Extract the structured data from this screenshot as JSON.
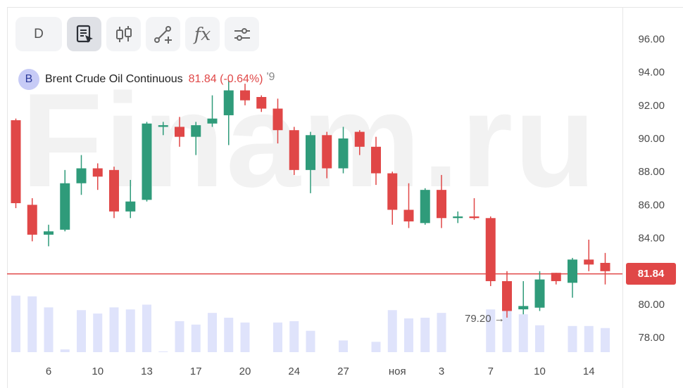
{
  "toolbar": {
    "period_label": "D",
    "tools": [
      {
        "icon": "script-cursor-icon",
        "active": true
      },
      {
        "icon": "candles-icon",
        "active": false
      },
      {
        "icon": "draw-line-icon",
        "active": false
      },
      {
        "icon": "function-icon",
        "label": "fx",
        "active": false
      },
      {
        "icon": "settings-sliders-icon",
        "active": false
      }
    ]
  },
  "legend": {
    "badge": "B",
    "name": "Brent Crude Oil Continuous",
    "value": "81.84 (-0.64%)",
    "trail": "'9"
  },
  "watermark": "Finam.ru",
  "current_price_label": "81.84",
  "min_label": "79.20 →",
  "colors": {
    "up": "#2f9b7a",
    "down": "#e04747",
    "volume": "#dfe3fb",
    "price_line": "#e04747"
  },
  "chart_data": {
    "type": "candlestick",
    "title": "Brent Crude Oil Continuous",
    "y_ticks": [
      "96.00",
      "94.00",
      "92.00",
      "90.00",
      "88.00",
      "86.00",
      "84.00",
      "82.00",
      "80.00",
      "78.00"
    ],
    "ylim": [
      77.2,
      97.8
    ],
    "x_ticks": [
      {
        "index": 2,
        "label": "6"
      },
      {
        "index": 5,
        "label": "10"
      },
      {
        "index": 8,
        "label": "13"
      },
      {
        "index": 11,
        "label": "17"
      },
      {
        "index": 14,
        "label": "20"
      },
      {
        "index": 17,
        "label": "24"
      },
      {
        "index": 20,
        "label": "27"
      },
      {
        "index": 23.3,
        "label": "ноя"
      },
      {
        "index": 26,
        "label": "3"
      },
      {
        "index": 29,
        "label": "7"
      },
      {
        "index": 32,
        "label": "10"
      },
      {
        "index": 35,
        "label": "14"
      }
    ],
    "current_price": 81.84,
    "candles": [
      {
        "i": 0,
        "o": 91.1,
        "h": 91.2,
        "l": 85.8,
        "c": 86.1
      },
      {
        "i": 1,
        "o": 86.0,
        "h": 86.4,
        "l": 83.8,
        "c": 84.2
      },
      {
        "i": 2,
        "o": 84.2,
        "h": 84.8,
        "l": 83.5,
        "c": 84.4
      },
      {
        "i": 3,
        "o": 84.5,
        "h": 88.1,
        "l": 84.4,
        "c": 87.3
      },
      {
        "i": 4,
        "o": 87.3,
        "h": 89.0,
        "l": 86.6,
        "c": 88.2
      },
      {
        "i": 5,
        "o": 88.2,
        "h": 88.5,
        "l": 86.9,
        "c": 87.7
      },
      {
        "i": 6,
        "o": 88.1,
        "h": 88.3,
        "l": 85.2,
        "c": 85.6
      },
      {
        "i": 7,
        "o": 85.6,
        "h": 87.5,
        "l": 85.2,
        "c": 86.2
      },
      {
        "i": 8,
        "o": 86.3,
        "h": 91.0,
        "l": 86.2,
        "c": 90.9
      },
      {
        "i": 9,
        "o": 90.7,
        "h": 91.0,
        "l": 90.2,
        "c": 90.8
      },
      {
        "i": 10,
        "o": 90.7,
        "h": 91.3,
        "l": 89.5,
        "c": 90.1
      },
      {
        "i": 11,
        "o": 90.1,
        "h": 91.0,
        "l": 89.0,
        "c": 90.8
      },
      {
        "i": 12,
        "o": 90.9,
        "h": 92.6,
        "l": 90.7,
        "c": 91.2
      },
      {
        "i": 13,
        "o": 91.4,
        "h": 93.5,
        "l": 89.6,
        "c": 92.9
      },
      {
        "i": 14,
        "o": 92.9,
        "h": 93.3,
        "l": 92.0,
        "c": 92.3
      },
      {
        "i": 15,
        "o": 92.5,
        "h": 92.6,
        "l": 91.6,
        "c": 91.8
      },
      {
        "i": 16,
        "o": 91.8,
        "h": 92.4,
        "l": 89.7,
        "c": 90.5
      },
      {
        "i": 17,
        "o": 90.5,
        "h": 90.7,
        "l": 87.8,
        "c": 88.1
      },
      {
        "i": 18,
        "o": 88.1,
        "h": 90.4,
        "l": 86.7,
        "c": 90.2
      },
      {
        "i": 19,
        "o": 90.2,
        "h": 90.4,
        "l": 87.6,
        "c": 88.2
      },
      {
        "i": 20,
        "o": 88.2,
        "h": 90.7,
        "l": 87.9,
        "c": 90.0
      },
      {
        "i": 21,
        "o": 90.4,
        "h": 90.5,
        "l": 89.0,
        "c": 89.5
      },
      {
        "i": 22,
        "o": 89.5,
        "h": 90.1,
        "l": 87.2,
        "c": 87.9
      },
      {
        "i": 23,
        "o": 87.9,
        "h": 88.0,
        "l": 84.8,
        "c": 85.7
      },
      {
        "i": 24,
        "o": 85.7,
        "h": 87.3,
        "l": 84.6,
        "c": 85.0
      },
      {
        "i": 25,
        "o": 84.9,
        "h": 87.0,
        "l": 84.8,
        "c": 86.9
      },
      {
        "i": 26,
        "o": 86.9,
        "h": 87.8,
        "l": 84.6,
        "c": 85.2
      },
      {
        "i": 27,
        "o": 85.2,
        "h": 85.6,
        "l": 84.9,
        "c": 85.3
      },
      {
        "i": 28,
        "o": 85.3,
        "h": 86.4,
        "l": 85.1,
        "c": 85.2
      },
      {
        "i": 29,
        "o": 85.2,
        "h": 85.3,
        "l": 81.1,
        "c": 81.4
      },
      {
        "i": 30,
        "o": 81.4,
        "h": 82.0,
        "l": 79.2,
        "c": 79.6
      },
      {
        "i": 31,
        "o": 79.7,
        "h": 81.4,
        "l": 79.4,
        "c": 79.9
      },
      {
        "i": 32,
        "o": 79.8,
        "h": 82.0,
        "l": 79.6,
        "c": 81.5
      },
      {
        "i": 33,
        "o": 81.9,
        "h": 81.9,
        "l": 81.2,
        "c": 81.4
      },
      {
        "i": 34,
        "o": 81.3,
        "h": 82.8,
        "l": 80.4,
        "c": 82.7
      },
      {
        "i": 35,
        "o": 82.7,
        "h": 83.9,
        "l": 82.0,
        "c": 82.4
      },
      {
        "i": 36,
        "o": 82.5,
        "h": 83.1,
        "l": 81.2,
        "c": 82.0
      }
    ],
    "volume": [
      0.82,
      0.81,
      0.65,
      0.04,
      0.61,
      0.56,
      0.65,
      0.62,
      0.69,
      0.01,
      0.45,
      0.4,
      0.57,
      0.5,
      0.43,
      0.0,
      0.43,
      0.45,
      0.31,
      0.0,
      0.17,
      0.0,
      0.15,
      0.61,
      0.49,
      0.5,
      0.57,
      0.0,
      0.0,
      0.62,
      0.69,
      0.55,
      0.39,
      0.0,
      0.38,
      0.38,
      0.35
    ]
  }
}
